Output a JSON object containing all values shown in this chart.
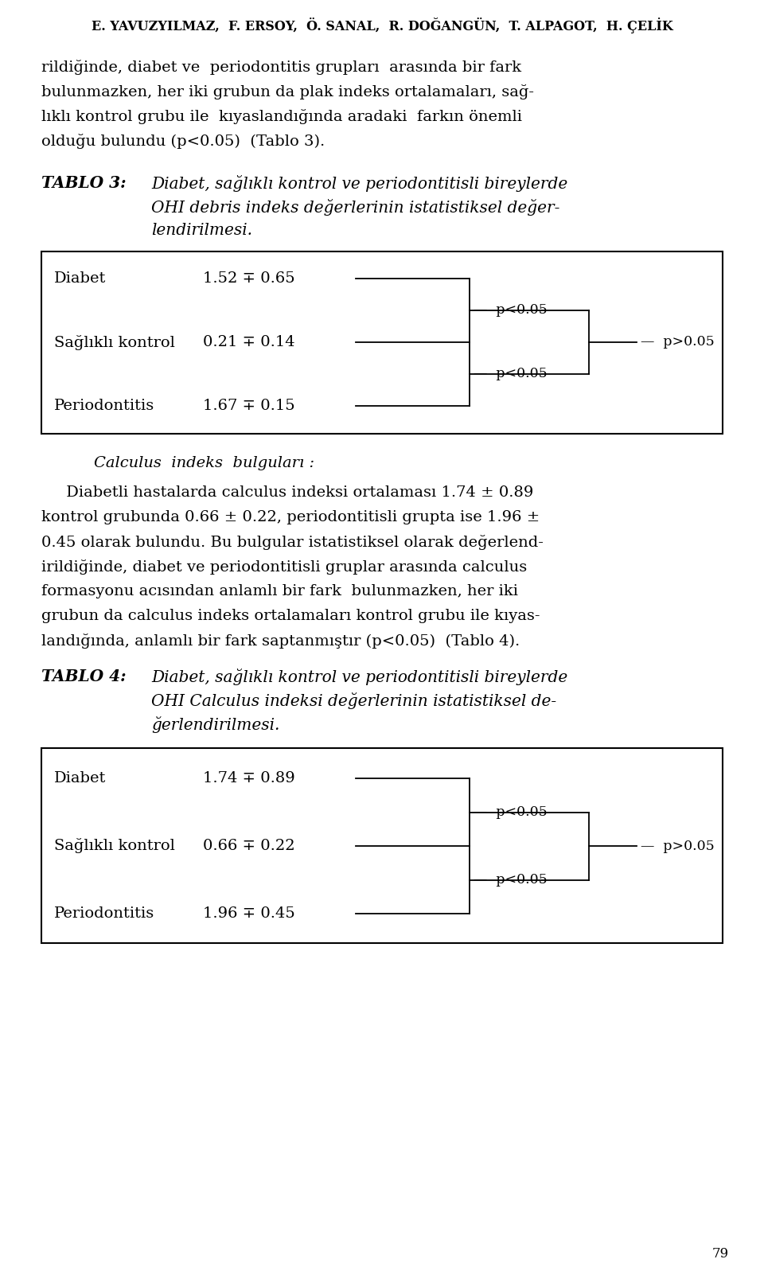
{
  "title_authors": "E. YAVUZYILMAZ,  F. ERSOY,  Ö. SANAL,  R. DOĞANGÜN,  T. ALPAGOT,  H. ÇELİK",
  "intro_lines": [
    "rildiğinde, diabet ve  periodontitis grupları  arasında bir fark",
    "bulunmazken, her iki grubun da plak indeks ortalamaları, sağ-",
    "lıklı kontrol grubu ile  kıyaslandığında aradaki  farkın önemli",
    "olduğu bulundu (p<0.05)  (Tablo 3)."
  ],
  "tablo3_label": "TABLO 3:",
  "tablo3_title_lines": [
    "Diabet, sağlıklı kontrol ve periodontitisli bireylerde",
    "OHI debris indeks değerlerinin istatistiksel değer-",
    "lendirilmesi."
  ],
  "table3_rows": [
    {
      "label": "Diabet",
      "value": "1.52 ∓ 0.65"
    },
    {
      "label": "Sağlıklı kontrol",
      "value": "0.21 ∓ 0.14"
    },
    {
      "label": "Periodontitis",
      "value": "1.67 ∓ 0.15"
    }
  ],
  "calculus_header": "Calculus  indeks  bulguları :",
  "calculus_body_lines": [
    "     Diabetli hastalarda calculus indeksi ortalaması 1.74 ± 0.89",
    "kontrol grubunda 0.66 ± 0.22, periodontitisli grupta ise 1.96 ±",
    "0.45 olarak bulundu. Bu bulgular istatistiksel olarak değerlend-",
    "irildiğinde, diabet ve periodontitisli gruplar arasında calculus",
    "formasyonu acısından anlamlı bir fark  bulunmazken, her iki",
    "grubun da calculus indeks ortalamaları kontrol grubu ile kıyas-",
    "landığında, anlamlı bir fark saptanmıştır (p<0.05)  (Tablo 4)."
  ],
  "tablo4_label": "TABLO 4:",
  "tablo4_title_lines": [
    "Diabet, sağlıklı kontrol ve periodontitisli bireylerde",
    "OHI Calculus indeksi değerlerinin istatistiksel de-",
    "ğerlendirilmesi."
  ],
  "table4_rows": [
    {
      "label": "Diabet",
      "value": "1.74 ∓ 0.89"
    },
    {
      "label": "Sağlıklı kontrol",
      "value": "0.66 ∓ 0.22"
    },
    {
      "label": "Periodontitis",
      "value": "1.96 ∓ 0.45"
    }
  ],
  "page_number": "79",
  "bg_color": "#ffffff",
  "text_color": "#000000"
}
